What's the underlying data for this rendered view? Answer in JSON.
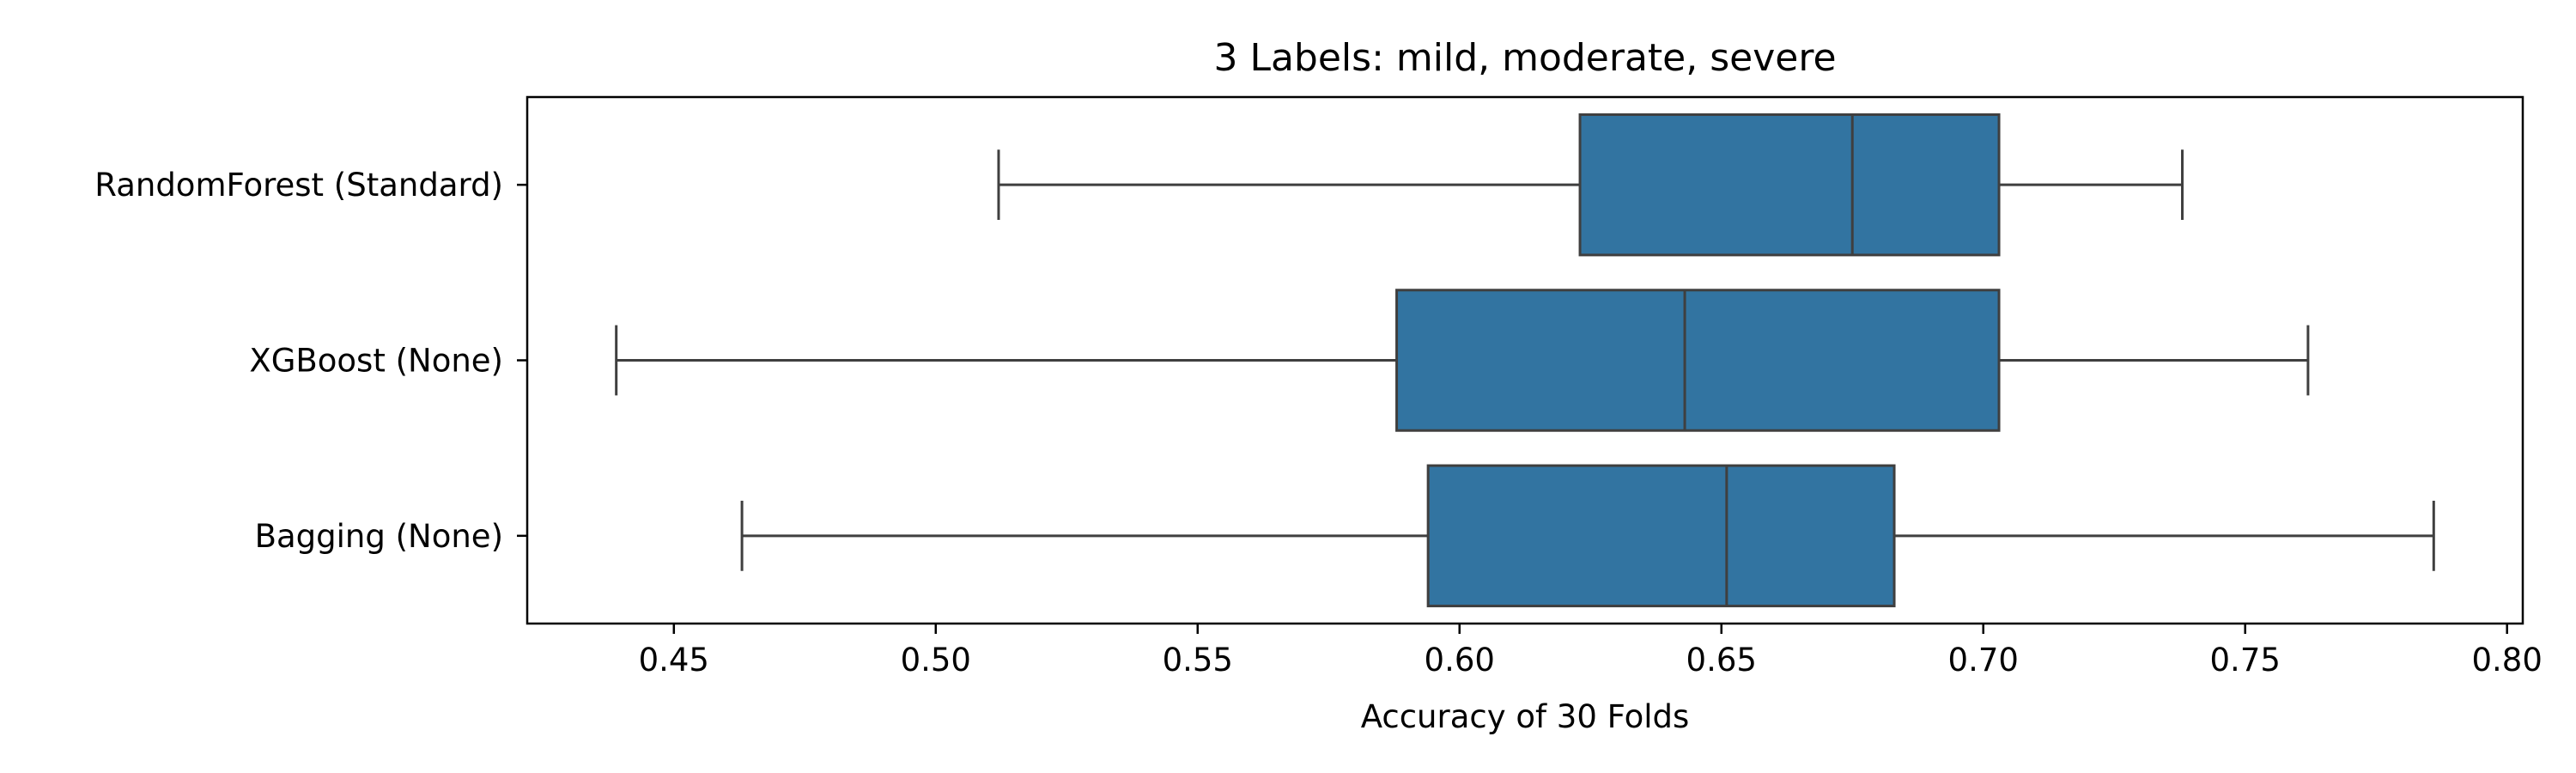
{
  "chart_data": {
    "type": "boxplot",
    "orientation": "horizontal",
    "title": "3 Labels: mild, moderate, severe",
    "xlabel": "Accuracy of 30 Folds",
    "ylabel": "",
    "xlim": [
      0.422,
      0.803
    ],
    "xticks": [
      0.45,
      0.5,
      0.55,
      0.6,
      0.65,
      0.7,
      0.75,
      0.8
    ],
    "xtick_labels": [
      "0.45",
      "0.50",
      "0.55",
      "0.60",
      "0.65",
      "0.70",
      "0.75",
      "0.80"
    ],
    "grid": false,
    "legend": "none",
    "color": "#3274a1",
    "edge_color": "#3f3f3f",
    "categories": [
      "RandomForest (Standard)",
      "XGBoost (None)",
      "Bagging (None)"
    ],
    "boxes": [
      {
        "label": "RandomForest (Standard)",
        "whisker_low": 0.512,
        "q1": 0.623,
        "median": 0.675,
        "q3": 0.703,
        "whisker_high": 0.738
      },
      {
        "label": "XGBoost (None)",
        "whisker_low": 0.439,
        "q1": 0.588,
        "median": 0.643,
        "q3": 0.703,
        "whisker_high": 0.762
      },
      {
        "label": "Bagging (None)",
        "whisker_low": 0.463,
        "q1": 0.594,
        "median": 0.651,
        "q3": 0.683,
        "whisker_high": 0.786
      }
    ]
  }
}
